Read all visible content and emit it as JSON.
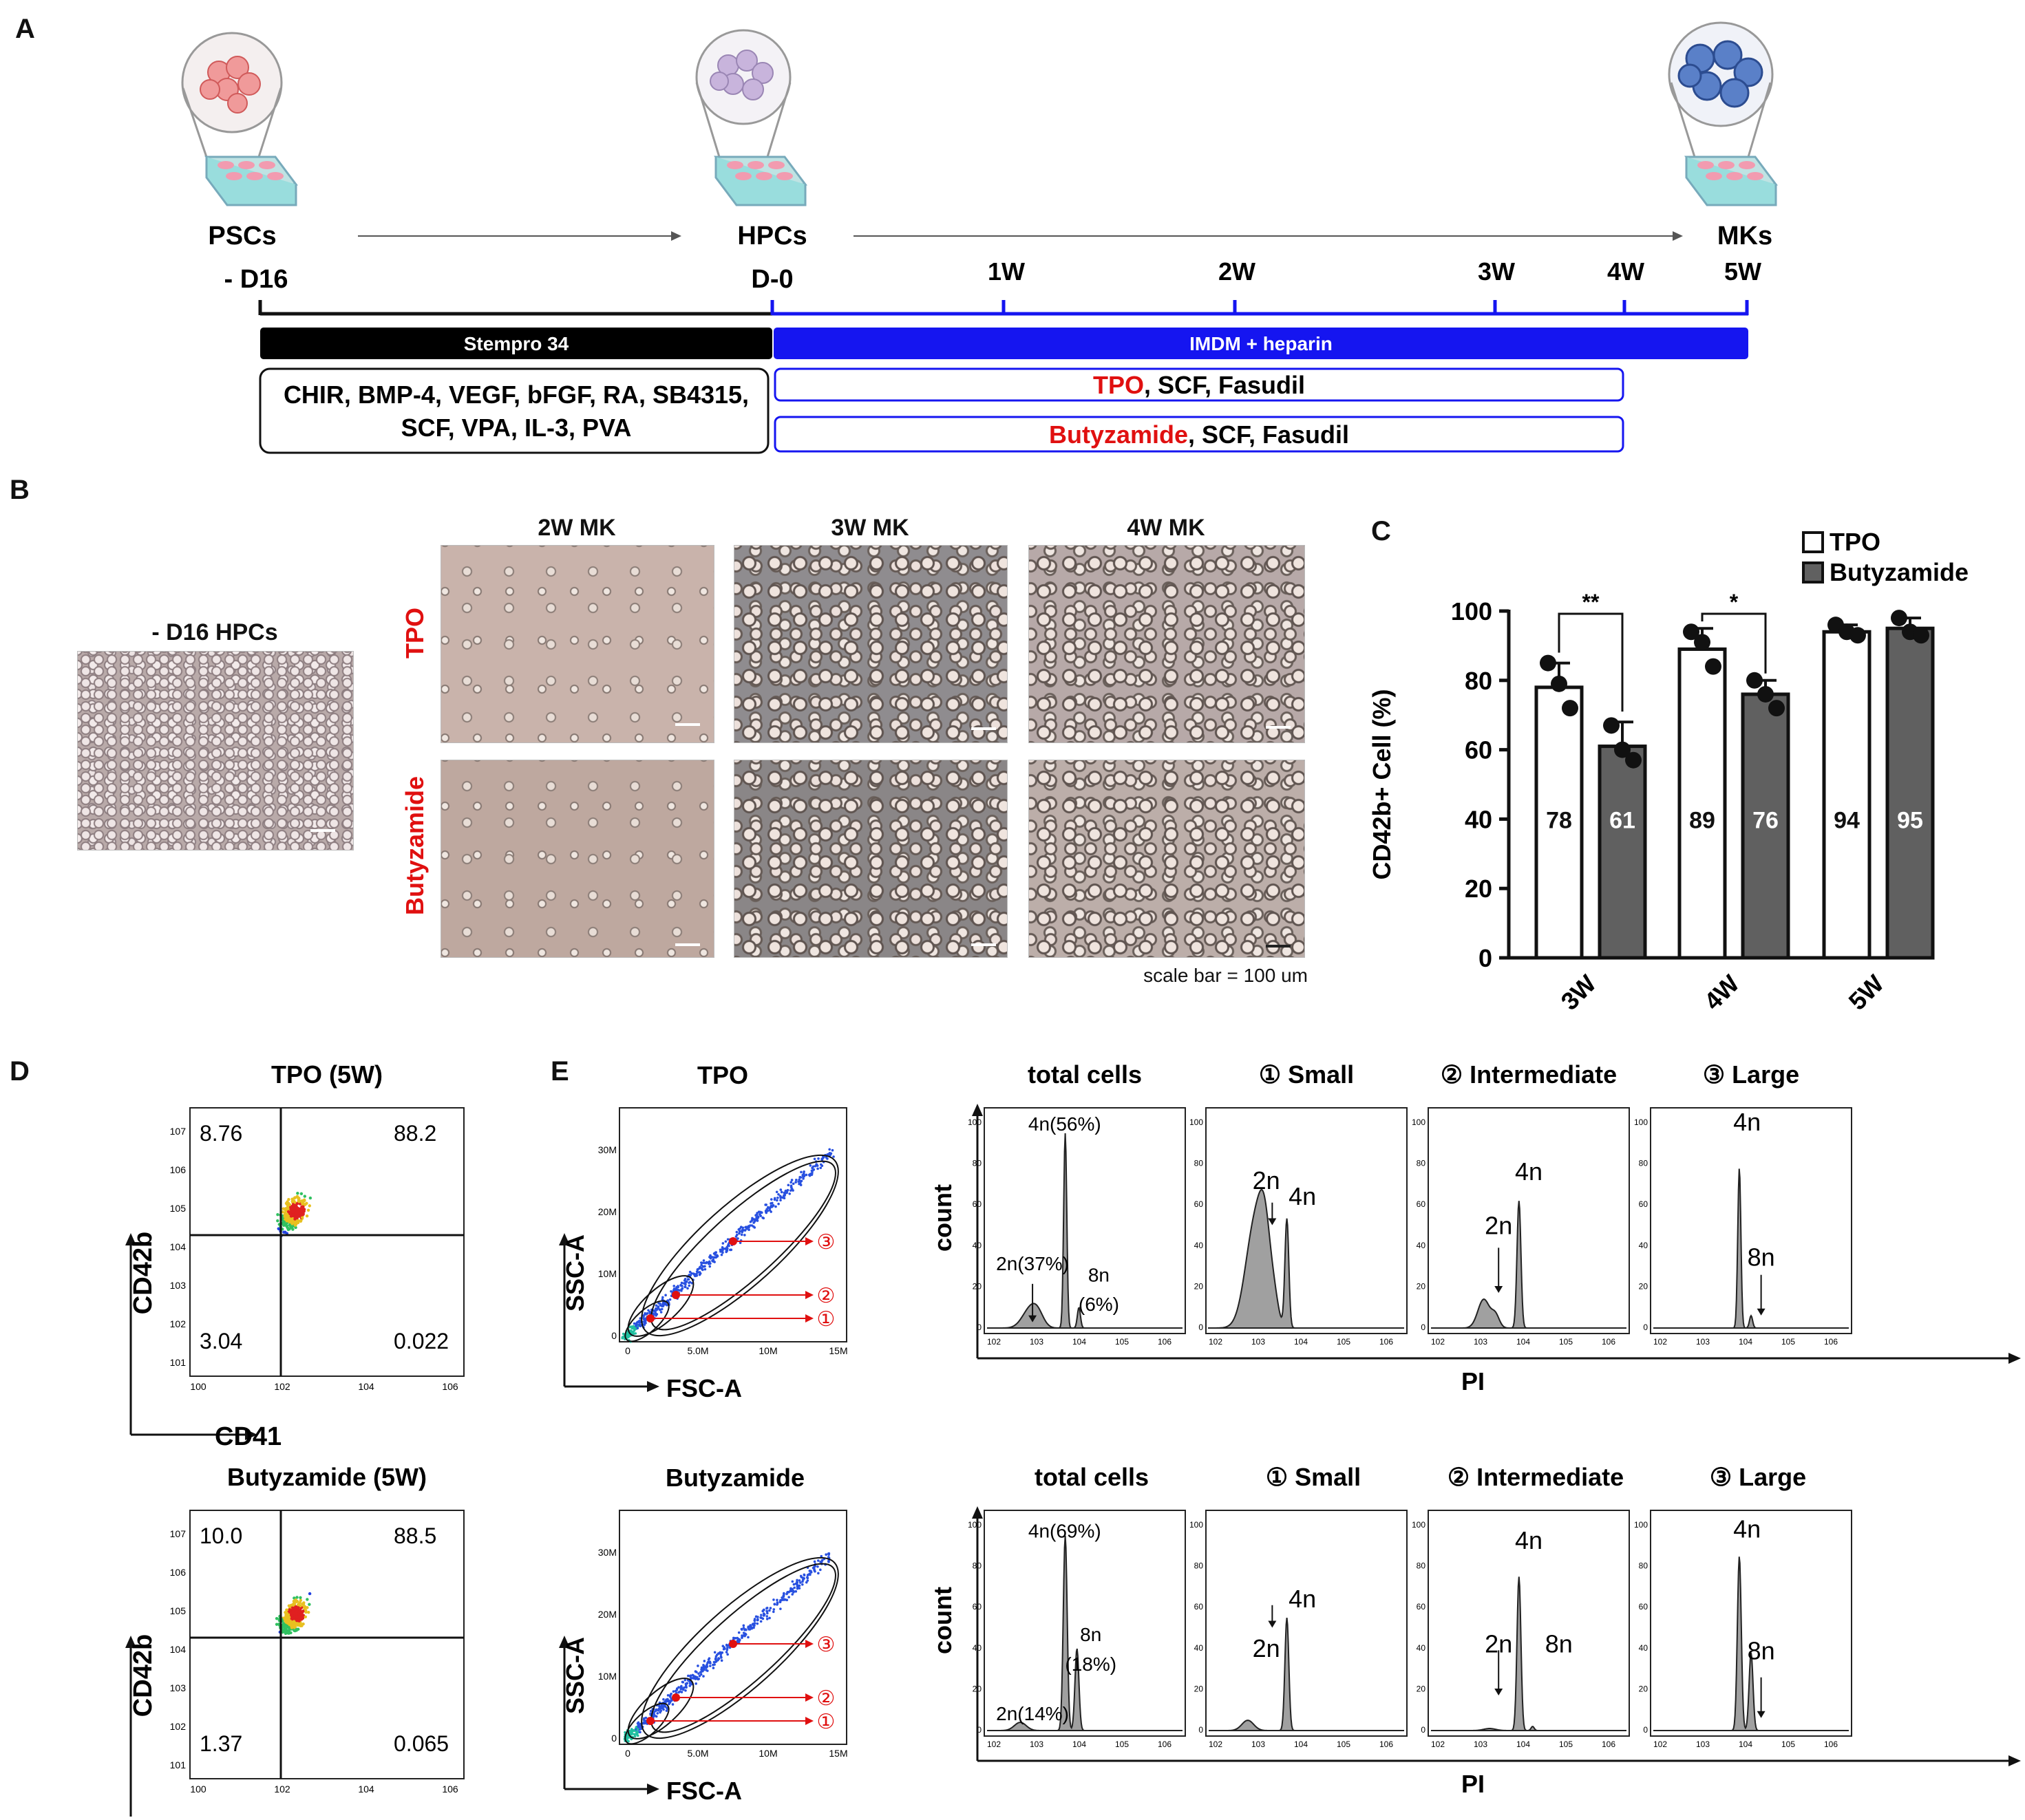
{
  "panel_letters": [
    "A",
    "B",
    "C",
    "D",
    "E"
  ],
  "panelA": {
    "stages": [
      "PSCs",
      "HPCs",
      "MKs"
    ],
    "days": [
      "- D16",
      "D-0"
    ],
    "weeks": [
      "1W",
      "2W",
      "3W",
      "4W",
      "5W"
    ],
    "bar_black": "Stempro 34",
    "bar_blue": "IMDM + heparin",
    "cocktail_line1": "CHIR, BMP-4, VEGF, bFGF, RA, SB4315,",
    "cocktail_line2": "SCF, VPA, IL-3, PVA",
    "tpo_red": "TPO",
    "tpo_rest": ", SCF, Fasudil",
    "buty_red": "Butyzamide",
    "buty_rest": ", SCF, Fasudil"
  },
  "panelB": {
    "hpc_title": "- D16 HPCs",
    "col_titles": [
      "2W MK",
      "3W MK",
      "4W MK"
    ],
    "row_labels": [
      "TPO",
      "Butyzamide"
    ],
    "scale_note": "scale bar = 100 um"
  },
  "chart_data": [
    {
      "type": "bar",
      "panel": "C",
      "categories": [
        "3W",
        "4W",
        "5W"
      ],
      "series": [
        {
          "name": "TPO",
          "values": [
            78,
            89,
            94
          ],
          "error": [
            7,
            6,
            2
          ],
          "points": [
            [
              85,
              79,
              72
            ],
            [
              94,
              91,
              84
            ],
            [
              96,
              94,
              93
            ]
          ]
        },
        {
          "name": "Butyzamide",
          "values": [
            61,
            76,
            95
          ],
          "error": [
            7,
            4,
            3
          ],
          "points": [
            [
              67,
              60,
              57
            ],
            [
              80,
              76,
              72
            ],
            [
              98,
              94,
              93
            ]
          ]
        }
      ],
      "value_labels": [
        "78",
        "61",
        "89",
        "76",
        "94",
        "95"
      ],
      "significance": [
        {
          "category": "3W",
          "label": "**"
        },
        {
          "category": "4W",
          "label": "*"
        }
      ],
      "ylabel": "CD42b+ Cell (%)",
      "ylim": [
        0,
        100
      ],
      "yticks": [
        "0",
        "20",
        "40",
        "60",
        "80",
        "100"
      ],
      "legend": "top-right",
      "colors": {
        "TPO": "#ffffff",
        "Butyzamide": "#606060"
      }
    },
    {
      "type": "scatter",
      "panel": "D",
      "plots": [
        {
          "title": "TPO (5W)",
          "quadrants": [
            "8.76",
            "88.2",
            "3.04",
            "0.022"
          ]
        },
        {
          "title": "Butyzamide (5W)",
          "quadrants": [
            "10.0",
            "88.5",
            "1.37",
            "0.065"
          ]
        }
      ],
      "xlabel": "CD41",
      "ylabel": "CD42b",
      "ytick_labels": [
        "10^1",
        "10^2",
        "10^3",
        "10^4",
        "10^5",
        "10^6",
        "10^7"
      ],
      "xtick_labels": [
        "10^0",
        "10^2",
        "10^4",
        "10^6"
      ]
    },
    {
      "type": "scatter",
      "panel": "E-gating",
      "plots": [
        {
          "title": "TPO"
        },
        {
          "title": "Butyzamide"
        }
      ],
      "xlabel": "FSC-A",
      "ylabel": "SSC-A",
      "xtick_labels": [
        "0",
        "5.0M",
        "10M",
        "15M"
      ],
      "ytick_labels": [
        "0",
        "10M",
        "20M",
        "30M"
      ],
      "gate_labels": [
        "③",
        "②",
        "①"
      ]
    },
    {
      "type": "area",
      "panel": "E-histograms",
      "xlabel": "PI",
      "ylabel": "count",
      "yticks": [
        "0",
        "20",
        "40",
        "60",
        "80",
        "100"
      ],
      "xtick_labels": [
        "10^2",
        "10^3",
        "10^4",
        "10^5",
        "10^6"
      ],
      "column_titles": [
        "total cells",
        "① Small",
        "② Intermediate",
        "③ Large"
      ],
      "rows": [
        {
          "condition": "TPO",
          "annotations": [
            [
              "2n(37%)",
              "4n(56%)",
              "8n",
              "(6%)"
            ],
            [
              "2n",
              "4n"
            ],
            [
              "2n",
              "4n"
            ],
            [
              "4n",
              "8n"
            ]
          ]
        },
        {
          "condition": "Butyzamide",
          "annotations": [
            [
              "2n(14%)",
              "4n(69%)",
              "8n",
              "(18%)"
            ],
            [
              "2n",
              "4n"
            ],
            [
              "2n",
              "4n",
              "8n"
            ],
            [
              "4n",
              "8n"
            ]
          ]
        }
      ]
    }
  ],
  "colors": {
    "blue": "#1515f0",
    "red": "#e01010",
    "bar_gray": "#606060",
    "hist_fill": "#a0a0a0"
  }
}
